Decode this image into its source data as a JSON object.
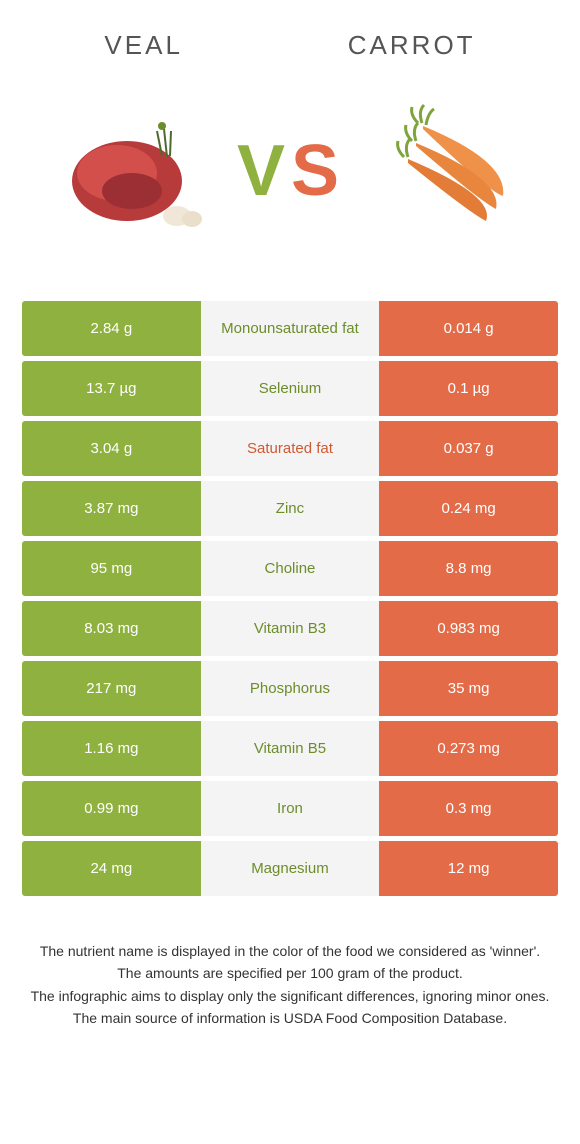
{
  "header": {
    "left_title": "Veal",
    "right_title": "Carrot",
    "vs_v": "V",
    "vs_s": "S"
  },
  "colors": {
    "left_bg": "#8fb140",
    "right_bg": "#e36b48",
    "mid_bg": "#f4f4f4",
    "mid_green": "#6d8d2a",
    "mid_orange": "#d05934",
    "title_color": "#555555",
    "body_bg": "#ffffff",
    "text": "#333333"
  },
  "table": {
    "rows": [
      {
        "left": "2.84 g",
        "label": "Monounsaturated fat",
        "winner": "green",
        "right": "0.014 g"
      },
      {
        "left": "13.7 µg",
        "label": "Selenium",
        "winner": "green",
        "right": "0.1 µg"
      },
      {
        "left": "3.04 g",
        "label": "Saturated fat",
        "winner": "orange",
        "right": "0.037 g"
      },
      {
        "left": "3.87 mg",
        "label": "Zinc",
        "winner": "green",
        "right": "0.24 mg"
      },
      {
        "left": "95 mg",
        "label": "Choline",
        "winner": "green",
        "right": "8.8 mg"
      },
      {
        "left": "8.03 mg",
        "label": "Vitamin B3",
        "winner": "green",
        "right": "0.983 mg"
      },
      {
        "left": "217 mg",
        "label": "Phosphorus",
        "winner": "green",
        "right": "35 mg"
      },
      {
        "left": "1.16 mg",
        "label": "Vitamin B5",
        "winner": "green",
        "right": "0.273 mg"
      },
      {
        "left": "0.99 mg",
        "label": "Iron",
        "winner": "green",
        "right": "0.3 mg"
      },
      {
        "left": "24 mg",
        "label": "Magnesium",
        "winner": "green",
        "right": "12 mg"
      }
    ]
  },
  "footnotes": {
    "line1": "The nutrient name is displayed in the color of the food we considered as 'winner'.",
    "line2": "The amounts are specified per 100 gram of the product.",
    "line3": "The infographic aims to display only the significant differences, ignoring minor ones.",
    "line4": "The main source of information is USDA Food Composition Database."
  }
}
